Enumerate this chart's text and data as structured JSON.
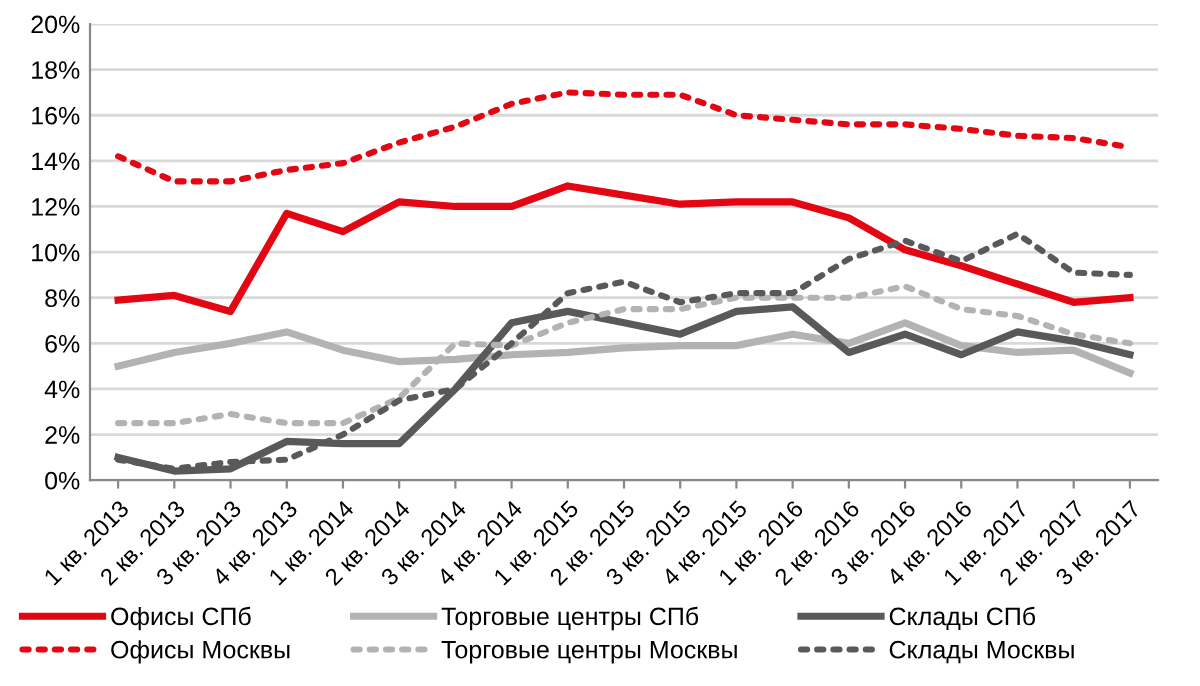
{
  "chart_data": {
    "type": "line",
    "categories": [
      "1 кв. 2013",
      "2 кв. 2013",
      "3 кв. 2013",
      "4 кв. 2013",
      "1 кв. 2014",
      "2 кв. 2014",
      "3 кв. 2014",
      "4 кв. 2014",
      "1 кв. 2015",
      "2 кв. 2015",
      "3 кв. 2015",
      "4 кв. 2015",
      "1 кв. 2016",
      "2 кв. 2016",
      "3 кв. 2016",
      "4 кв. 2016",
      "1 кв. 2017",
      "2 кв. 2017",
      "3 кв. 2017"
    ],
    "series": [
      {
        "name": "Офисы СПб",
        "color": "#e30613",
        "line_style": "solid",
        "values": [
          7.9,
          8.1,
          7.4,
          11.7,
          10.9,
          12.2,
          12.0,
          12.0,
          12.9,
          12.5,
          12.1,
          12.2,
          12.2,
          11.5,
          10.1,
          9.4,
          8.6,
          7.8,
          8.0
        ]
      },
      {
        "name": "Торговые центры СПб",
        "color": "#b3b3b3",
        "line_style": "solid",
        "values": [
          5.0,
          5.6,
          6.0,
          6.5,
          5.7,
          5.2,
          5.3,
          5.5,
          5.6,
          5.8,
          5.9,
          5.9,
          6.4,
          6.0,
          6.9,
          5.9,
          5.6,
          5.7,
          4.7
        ]
      },
      {
        "name": "Склады СПб",
        "color": "#595959",
        "line_style": "solid",
        "values": [
          1.0,
          0.4,
          0.5,
          1.7,
          1.6,
          1.6,
          4.0,
          6.9,
          7.4,
          6.9,
          6.4,
          7.4,
          7.6,
          5.6,
          6.4,
          5.5,
          6.5,
          6.1,
          5.5
        ]
      },
      {
        "name": "Офисы Москвы",
        "color": "#e30613",
        "line_style": "dotted",
        "values": [
          14.2,
          13.1,
          13.1,
          13.6,
          13.9,
          14.8,
          15.5,
          16.5,
          17.0,
          16.9,
          16.9,
          16.0,
          15.8,
          15.6,
          15.6,
          15.4,
          15.1,
          15.0,
          14.6
        ]
      },
      {
        "name": "Торговые центры Москвы",
        "color": "#b3b3b3",
        "line_style": "dotted",
        "values": [
          2.5,
          2.5,
          2.9,
          2.5,
          2.5,
          3.6,
          6.0,
          5.9,
          6.9,
          7.5,
          7.5,
          8.0,
          8.0,
          8.0,
          8.5,
          7.5,
          7.2,
          6.4,
          6.0
        ]
      },
      {
        "name": "Склады Москвы",
        "color": "#595959",
        "line_style": "dotted",
        "values": [
          0.9,
          0.5,
          0.8,
          0.9,
          2.0,
          3.5,
          4.0,
          6.0,
          8.2,
          8.7,
          7.8,
          8.2,
          8.2,
          9.7,
          10.5,
          9.6,
          10.8,
          9.1,
          9.0
        ]
      }
    ],
    "ylim": [
      0,
      20
    ],
    "yticks": [
      {
        "value": 0,
        "label": "0%"
      },
      {
        "value": 2,
        "label": "2%"
      },
      {
        "value": 4,
        "label": "4%"
      },
      {
        "value": 6,
        "label": "6%"
      },
      {
        "value": 8,
        "label": "8%"
      },
      {
        "value": 10,
        "label": "10%"
      },
      {
        "value": 12,
        "label": "12%"
      },
      {
        "value": 14,
        "label": "14%"
      },
      {
        "value": 16,
        "label": "16%"
      },
      {
        "value": 18,
        "label": "18%"
      },
      {
        "value": 20,
        "label": "20%"
      }
    ],
    "grid": "y",
    "legend": "bottom",
    "marker": "none"
  }
}
